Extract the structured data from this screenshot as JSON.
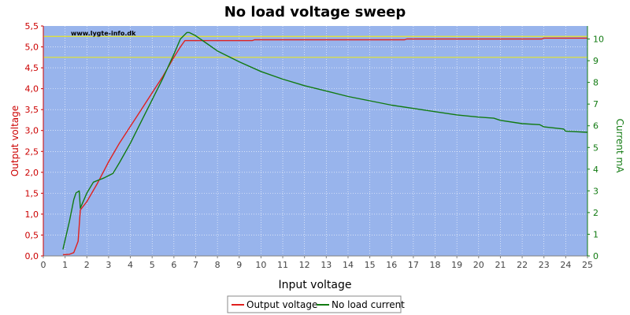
{
  "chart_data": {
    "type": "line",
    "title": "No load voltage sweep",
    "watermark": "www.lygte-info.dk",
    "xlabel": "Input voltage",
    "ylabel_left": "Output voltage",
    "ylabel_right": "Current mA",
    "xlim": [
      0,
      25
    ],
    "ylim_left": [
      0,
      5.5
    ],
    "ylim_right": [
      0,
      10.6
    ],
    "xticks": [
      "0",
      "1",
      "2",
      "3",
      "4",
      "5",
      "6",
      "7",
      "8",
      "9",
      "10",
      "11",
      "12",
      "13",
      "14",
      "15",
      "16",
      "17",
      "18",
      "19",
      "20",
      "21",
      "22",
      "23",
      "24",
      "25"
    ],
    "yticks_left": [
      "0,0",
      "0,5",
      "1,0",
      "1,5",
      "2,0",
      "2,5",
      "3,0",
      "3,5",
      "4,0",
      "4,5",
      "5,0",
      "5,5"
    ],
    "yticks_right": [
      "0",
      "1",
      "2",
      "3",
      "4",
      "5",
      "6",
      "7",
      "8",
      "9",
      "10"
    ],
    "reference_lines_left": [
      4.75,
      5.25
    ],
    "grid": true,
    "legend_position": "bottom-center",
    "colors": {
      "plot_bg": "#98b4ec",
      "output_voltage": "#e0201e",
      "no_load_current": "#117a11",
      "reference": "#e6e62a",
      "left_axis": "#cc0000",
      "right_axis": "#117a11"
    },
    "series": [
      {
        "name": "Output voltage",
        "axis": "left",
        "x": [
          0.9,
          1.2,
          1.4,
          1.6,
          1.7,
          2.0,
          2.5,
          3.0,
          3.5,
          4.0,
          4.5,
          5.0,
          5.5,
          6.0,
          6.3,
          6.5,
          6.6,
          7.0,
          8.0,
          9.6,
          9.7,
          12.0,
          16.6,
          16.7,
          20.0,
          22.9,
          23.0,
          25.0
        ],
        "y": [
          0.03,
          0.04,
          0.08,
          0.35,
          1.1,
          1.3,
          1.75,
          2.25,
          2.7,
          3.1,
          3.5,
          3.9,
          4.3,
          4.75,
          5.0,
          5.15,
          5.15,
          5.15,
          5.15,
          5.15,
          5.17,
          5.17,
          5.17,
          5.19,
          5.19,
          5.19,
          5.21,
          5.21
        ]
      },
      {
        "name": "No load current",
        "axis": "right",
        "x": [
          0.9,
          1.2,
          1.4,
          1.5,
          1.65,
          1.7,
          2.0,
          2.3,
          2.8,
          3.2,
          3.5,
          4.0,
          4.5,
          5.0,
          5.5,
          6.0,
          6.3,
          6.6,
          6.7,
          7.0,
          7.5,
          8.0,
          9.0,
          10.0,
          11.0,
          12.0,
          13.0,
          14.0,
          15.0,
          16.0,
          17.0,
          18.0,
          19.0,
          20.0,
          20.7,
          21.0,
          22.0,
          22.8,
          23.0,
          23.9,
          24.0,
          25.0
        ],
        "y": [
          0.3,
          1.6,
          2.6,
          2.9,
          3.0,
          2.2,
          2.9,
          3.4,
          3.6,
          3.8,
          4.3,
          5.2,
          6.2,
          7.2,
          8.2,
          9.3,
          10.0,
          10.3,
          10.3,
          10.15,
          9.8,
          9.45,
          8.95,
          8.5,
          8.15,
          7.85,
          7.6,
          7.35,
          7.15,
          6.95,
          6.8,
          6.65,
          6.5,
          6.4,
          6.35,
          6.25,
          6.1,
          6.05,
          5.95,
          5.85,
          5.75,
          5.7
        ]
      }
    ]
  }
}
